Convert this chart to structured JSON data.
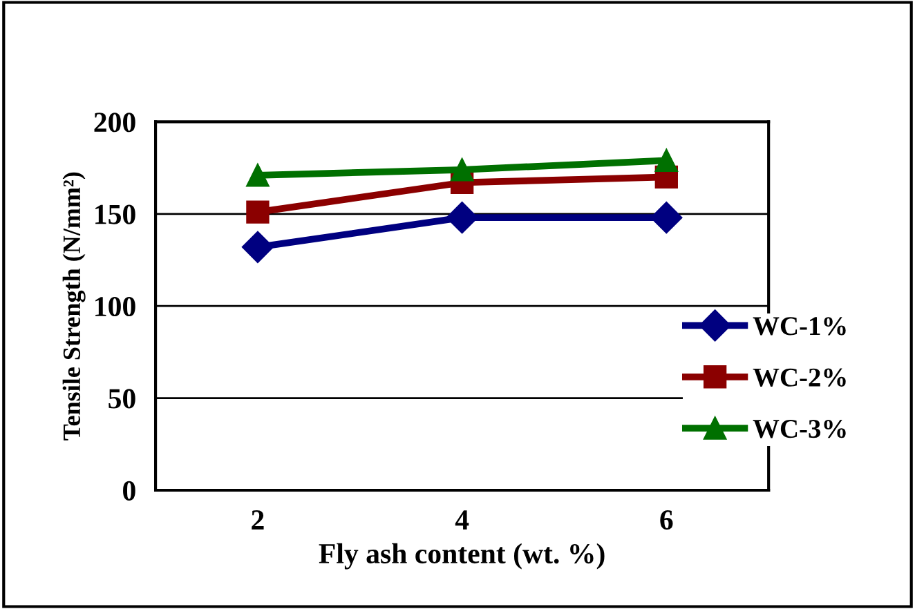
{
  "chart_data": {
    "type": "line",
    "xlabel": "Fly ash content (wt. %)",
    "ylabel": "Tensile Strength (N/mm²)",
    "x": [
      2,
      4,
      6
    ],
    "xlim": [
      1,
      7
    ],
    "xticks": [
      2,
      4,
      6
    ],
    "series": [
      {
        "name": "WC-1%",
        "color": "#000080",
        "values": [
          132,
          148,
          148
        ],
        "marker": "diamond"
      },
      {
        "name": "WC-2%",
        "color": "#8b0000",
        "values": [
          151,
          167,
          170
        ],
        "marker": "square"
      },
      {
        "name": "WC-3%",
        "color": "#007000",
        "values": [
          171,
          174,
          179
        ],
        "marker": "triangle"
      }
    ],
    "ylim": [
      0,
      200
    ],
    "yticks": [
      0,
      50,
      100,
      150,
      200
    ],
    "grid": "y",
    "legend": "right",
    "line_style": "solid"
  }
}
